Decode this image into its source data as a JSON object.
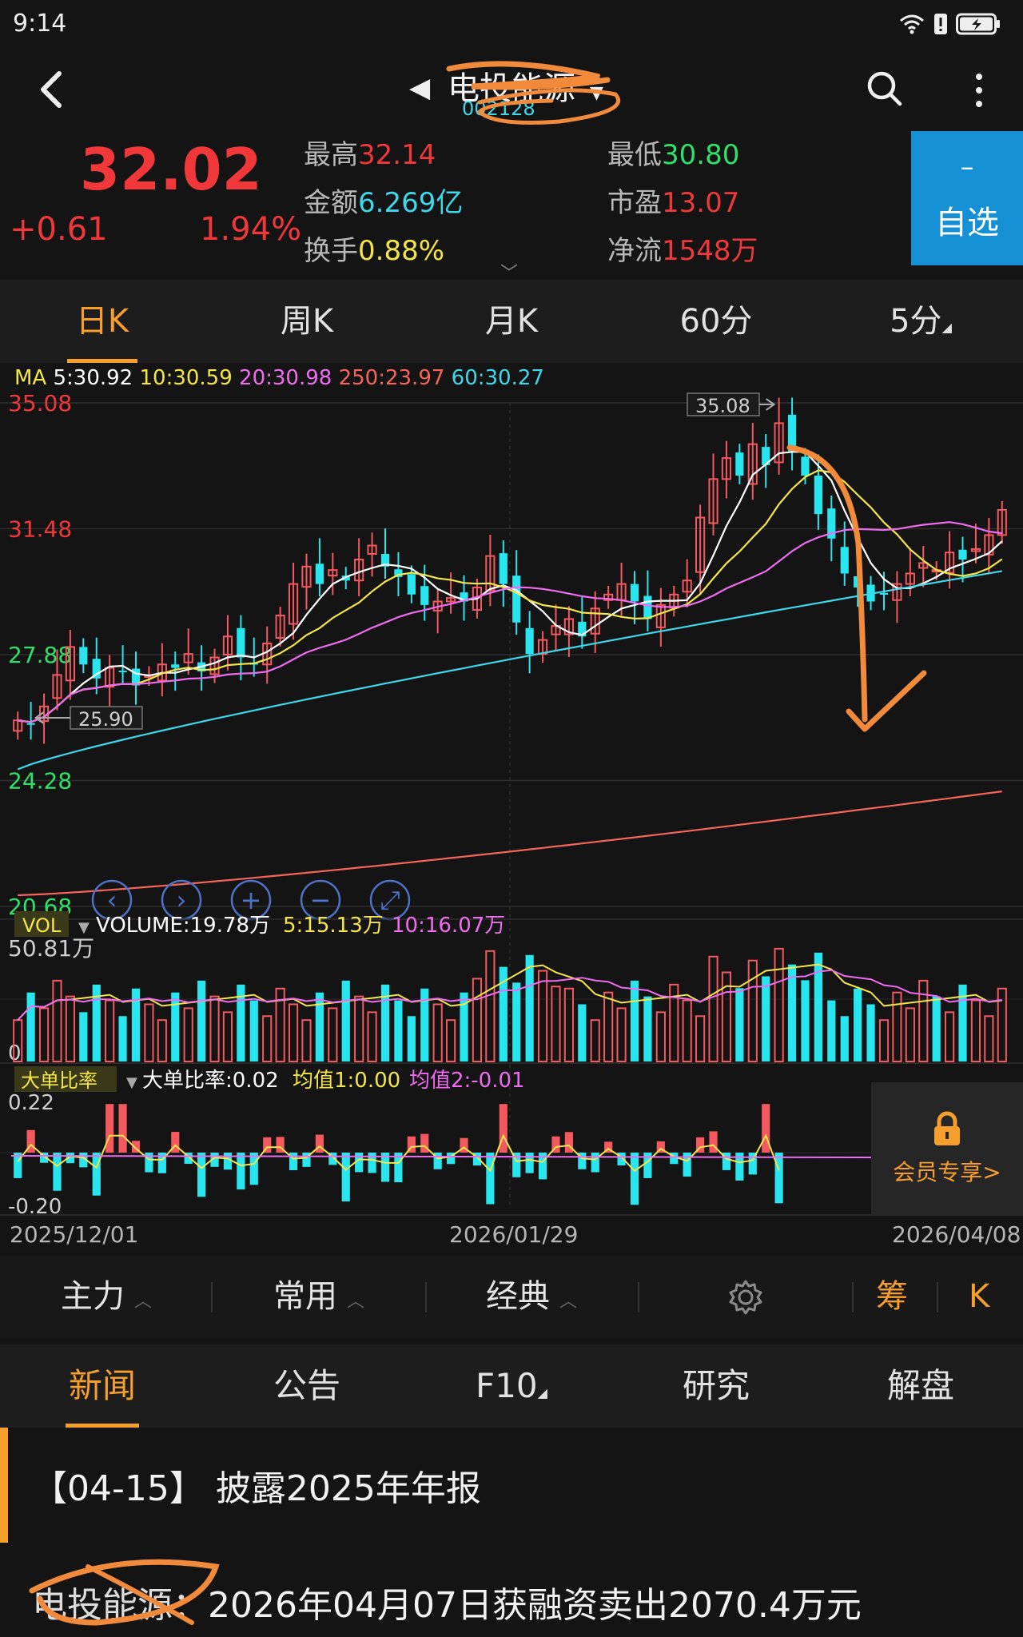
{
  "status": {
    "time": "9:14"
  },
  "header": {
    "name": "电投能源",
    "code": "002128"
  },
  "quote": {
    "price": "32.02",
    "change": "+0.61",
    "change_pct": "1.94%",
    "metrics": [
      {
        "label": "最高",
        "value": "32.14",
        "color": "#f0373a"
      },
      {
        "label": "最低",
        "value": "30.80",
        "color": "#2fe06a"
      },
      {
        "label": "金额",
        "value": "6.269亿",
        "color": "#3fd7ea"
      },
      {
        "label": "市盈",
        "value": "13.07",
        "color": "#f0373a"
      },
      {
        "label": "换手",
        "value": "0.88%",
        "color": "#f4e64a"
      },
      {
        "label": "净流",
        "value": "1548万",
        "color": "#f0373a"
      }
    ],
    "fav_symbol": "–",
    "fav_label": "自选"
  },
  "period_tabs": [
    "日K",
    "周K",
    "月K",
    "60分",
    "5分"
  ],
  "ma_legend": {
    "prefix": "MA",
    "items": [
      {
        "text": "5:30.92",
        "color": "#ffffff"
      },
      {
        "text": "10:30.59",
        "color": "#f4e64a"
      },
      {
        "text": "20:30.98",
        "color": "#ef6cf0"
      },
      {
        "text": "250:23.97",
        "color": "#f4655a"
      },
      {
        "text": "60:30.27",
        "color": "#3fd7ea"
      }
    ]
  },
  "chart_data": {
    "type": "candlestick",
    "y_axis_labels": [
      "35.08",
      "31.48",
      "27.88",
      "24.28",
      "20.68"
    ],
    "ylim": [
      20.68,
      35.08
    ],
    "high_marker": "35.08",
    "low_marker": "25.90",
    "colors": {
      "up": "#f3595e",
      "down": "#28e6ef"
    },
    "closes": [
      26.0,
      25.9,
      26.4,
      27.3,
      28.1,
      27.6,
      27.2,
      27.5,
      27.4,
      27.0,
      27.3,
      27.6,
      27.5,
      27.9,
      27.4,
      27.8,
      28.4,
      27.8,
      27.6,
      28.2,
      29.0,
      29.9,
      30.4,
      29.9,
      30.3,
      30.0,
      30.6,
      31.0,
      30.4,
      30.1,
      29.6,
      29.3,
      29.4,
      29.5,
      29.4,
      29.8,
      30.7,
      29.9,
      28.8,
      27.9,
      28.3,
      28.7,
      28.9,
      28.4,
      29.2,
      29.6,
      29.9,
      29.4,
      28.9,
      29.3,
      29.6,
      30.0,
      31.8,
      32.9,
      33.5,
      33.0,
      33.9,
      33.3,
      34.5,
      33.7,
      33.0,
      31.9,
      31.2,
      30.2,
      29.8,
      29.4,
      29.6,
      29.9,
      30.2,
      30.5,
      30.3,
      30.8,
      30.6,
      30.9,
      31.3,
      32.02
    ],
    "volume_legend": {
      "main": "VOLUME:19.78万",
      "ma5": "5:15.13万",
      "ma10": "10:16.07万",
      "max_label": "50.81万",
      "zero_label": "0"
    },
    "big_order_legend": {
      "title": "大单比率",
      "value": "大单比率:0.02",
      "avg1": "均值1:0.00",
      "avg2": "均值2:-0.01",
      "max_label": "0.22",
      "min_label": "-0.20"
    },
    "date_labels": [
      "2025/12/01",
      "2026/01/29",
      "2026/04/08"
    ]
  },
  "member_panel": {
    "label": "会员专享>"
  },
  "toolbar": {
    "items": [
      "主力",
      "常用",
      "经典"
    ],
    "chip": "筹",
    "k": "K"
  },
  "news_tabs": [
    "新闻",
    "公告",
    "F10",
    "研究",
    "解盘"
  ],
  "news": {
    "item1": "【04-15】 披露2025年年报",
    "item2_prefix": "电投能源：",
    "item2": "2026年04月07日获融资卖出2070.4万元"
  }
}
